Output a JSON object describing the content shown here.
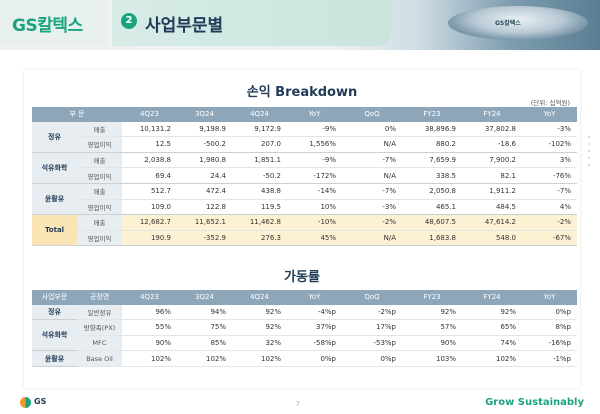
{
  "header": {
    "logo": "GS칼텍스",
    "section_number": "2",
    "section_title": "사업부문별",
    "image_label": "GS칼텍스"
  },
  "breakdown": {
    "title": "손익 Breakdown",
    "unit": "(단위: 십억원)",
    "columns": [
      "부 문",
      "4Q23",
      "3Q24",
      "4Q24",
      "YoY",
      "QoQ",
      "FY23",
      "FY24",
      "YoY"
    ],
    "groups": [
      {
        "name": "정유",
        "rows": [
          {
            "label": "매출",
            "values": [
              "10,131.2",
              "9,198.9",
              "9,172.9",
              "-9%",
              "0%",
              "38,896.9",
              "37,802.8",
              "-3%"
            ]
          },
          {
            "label": "영업이익",
            "values": [
              "12.5",
              "-500.2",
              "207.0",
              "1,556%",
              "N/A",
              "880.2",
              "-18.6",
              "-102%"
            ]
          }
        ]
      },
      {
        "name": "석유화학",
        "rows": [
          {
            "label": "매출",
            "values": [
              "2,038.8",
              "1,980.8",
              "1,851.1",
              "-9%",
              "-7%",
              "7,659.9",
              "7,900.2",
              "3%"
            ]
          },
          {
            "label": "영업이익",
            "values": [
              "69.4",
              "24.4",
              "-50.2",
              "-172%",
              "N/A",
              "338.5",
              "82.1",
              "-76%"
            ]
          }
        ]
      },
      {
        "name": "윤활유",
        "rows": [
          {
            "label": "매출",
            "values": [
              "512.7",
              "472.4",
              "438.8",
              "-14%",
              "-7%",
              "2,050.8",
              "1,911.2",
              "-7%"
            ]
          },
          {
            "label": "영업이익",
            "values": [
              "109.0",
              "122.8",
              "119.5",
              "10%",
              "-3%",
              "465.1",
              "484.5",
              "4%"
            ]
          }
        ]
      },
      {
        "name": "Total",
        "rows": [
          {
            "label": "매출",
            "values": [
              "12,682.7",
              "11,652.1",
              "11,462.8",
              "-10%",
              "-2%",
              "48,607.5",
              "47,614.2",
              "-2%"
            ]
          },
          {
            "label": "영업이익",
            "values": [
              "190.9",
              "-352.9",
              "276.3",
              "45%",
              "N/A",
              "1,683.8",
              "548.0",
              "-67%"
            ]
          }
        ]
      }
    ]
  },
  "utilization": {
    "title": "가동률",
    "columns": [
      "사업부문",
      "공정명",
      "4Q23",
      "3Q24",
      "4Q24",
      "YoY",
      "QoQ",
      "FY23",
      "FY24",
      "YoY"
    ],
    "rows": [
      {
        "division": "정유",
        "process": "일반정유",
        "values": [
          "96%",
          "94%",
          "92%",
          "-4%p",
          "-2%p",
          "92%",
          "92%",
          "0%p"
        ]
      },
      {
        "division": "석유화학",
        "process": "방향족(PX)",
        "values": [
          "55%",
          "75%",
          "92%",
          "37%p",
          "17%p",
          "57%",
          "65%",
          "8%p"
        ]
      },
      {
        "division": "",
        "process": "MFC",
        "values": [
          "90%",
          "85%",
          "32%",
          "-58%p",
          "-53%p",
          "90%",
          "74%",
          "-16%p"
        ]
      },
      {
        "division": "윤활유",
        "process": "Base Oil",
        "values": [
          "102%",
          "102%",
          "102%",
          "0%p",
          "0%p",
          "103%",
          "102%",
          "-1%p"
        ]
      }
    ]
  },
  "footer": {
    "logo": "GS",
    "page": "7",
    "slogan": "Grow Sustainably"
  },
  "colors": {
    "brand_green": "#1aa37f",
    "navy": "#1f3b57",
    "header_blue": "#8ea6ba",
    "total_highlight": "#fdf1d4"
  }
}
